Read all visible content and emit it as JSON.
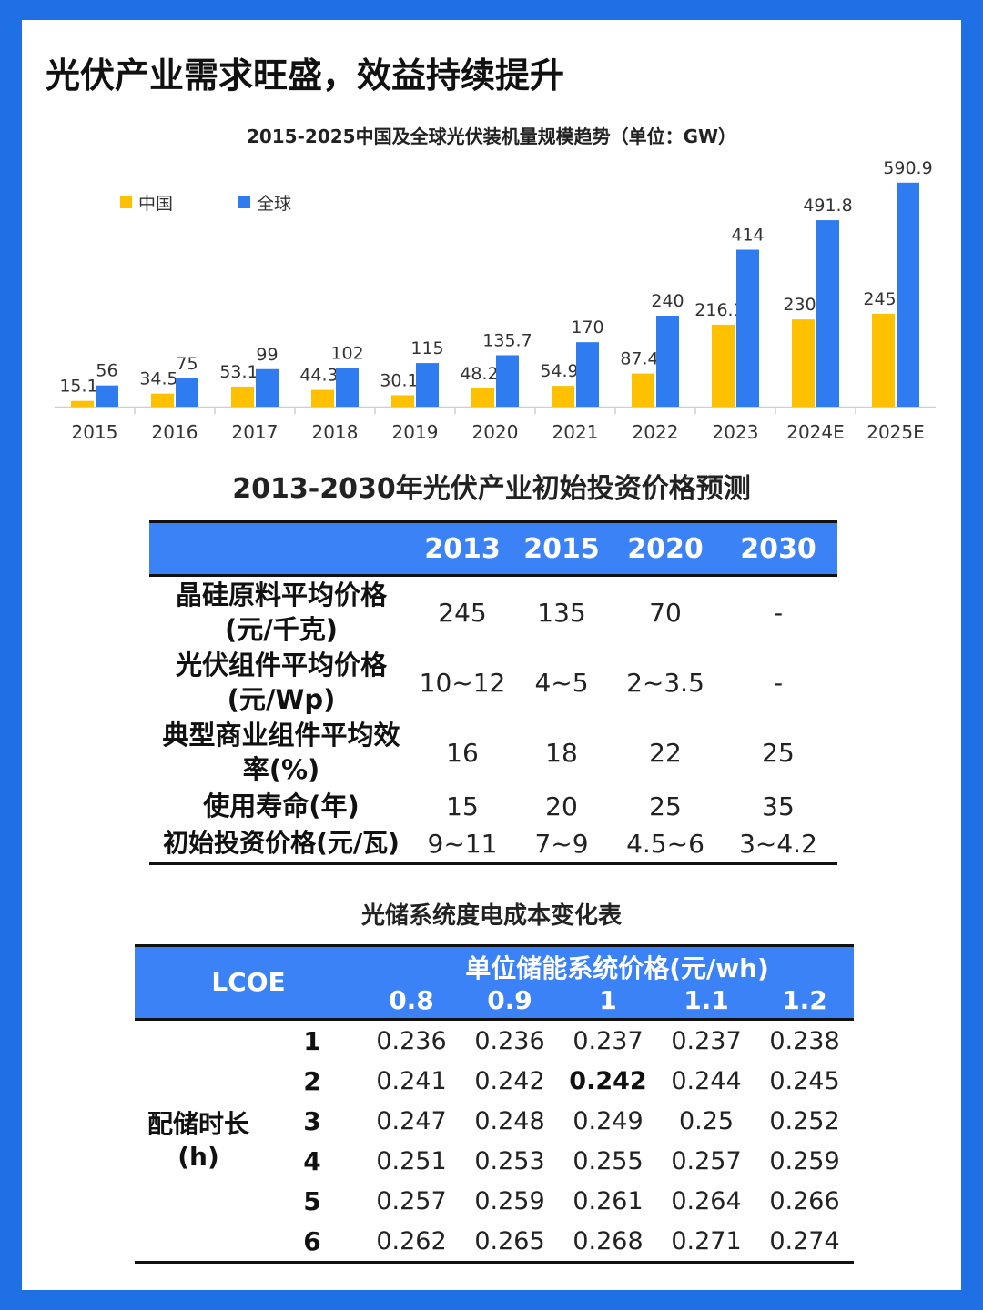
{
  "heading": "光伏产业需求旺盛，效益持续提升",
  "chart_data": {
    "type": "bar",
    "title": "2015-2025中国及全球光伏装机量规模趋势（单位：GW）",
    "categories": [
      "2015",
      "2016",
      "2017",
      "2018",
      "2019",
      "2020",
      "2021",
      "2022",
      "2023",
      "2024E",
      "2025E"
    ],
    "series": [
      {
        "name": "中国",
        "color": "#ffc000",
        "values": [
          15.1,
          34.5,
          53.1,
          44.3,
          30.1,
          48.2,
          54.9,
          87.4,
          216.3,
          230,
          245
        ]
      },
      {
        "name": "全球",
        "color": "#2f7cf0",
        "values": [
          56,
          75,
          99,
          102,
          115,
          135.7,
          170,
          240,
          414,
          491.8,
          590.9
        ]
      }
    ],
    "legend": "top-left",
    "grid": false,
    "ylim": [
      0,
      600
    ]
  },
  "table1": {
    "title": "2013-2030年光伏产业初始投资价格预测",
    "headers": [
      "",
      "2013",
      "2015",
      "2020",
      "2030"
    ],
    "rows": [
      {
        "label1": "晶硅原料平均价格",
        "label2": "(元/千克)",
        "values": [
          "245",
          "135",
          "70",
          "-"
        ]
      },
      {
        "label1": "光伏组件平均价格",
        "label2": "(元/Wp)",
        "values": [
          "10~12",
          "4~5",
          "2~3.5",
          "-"
        ]
      },
      {
        "label1": "典型商业组件平均效",
        "label2": "率(%)",
        "values": [
          "16",
          "18",
          "22",
          "25"
        ]
      },
      {
        "label1": "使用寿命(年)",
        "label2": "",
        "values": [
          "15",
          "20",
          "25",
          "35"
        ]
      },
      {
        "label1": "初始投资价格(元/瓦)",
        "label2": "",
        "values": [
          "9~11",
          "7~9",
          "4.5~6",
          "3~4.2"
        ]
      }
    ]
  },
  "table2": {
    "title": "光储系统度电成本变化表",
    "corner": "LCOE",
    "group_header": "单位储能系统价格(元/wh)",
    "columns": [
      "0.8",
      "0.9",
      "1",
      "1.1",
      "1.2"
    ],
    "side_label1": "配储时长",
    "side_label2": "(h)",
    "rows": [
      {
        "h": "1",
        "values": [
          "0.236",
          "0.236",
          "0.237",
          "0.237",
          "0.238"
        ]
      },
      {
        "h": "2",
        "values": [
          "0.241",
          "0.242",
          "0.242",
          "0.244",
          "0.245"
        ]
      },
      {
        "h": "3",
        "values": [
          "0.247",
          "0.248",
          "0.249",
          "0.25",
          "0.252"
        ]
      },
      {
        "h": "4",
        "values": [
          "0.251",
          "0.253",
          "0.255",
          "0.257",
          "0.259"
        ]
      },
      {
        "h": "5",
        "values": [
          "0.257",
          "0.259",
          "0.261",
          "0.264",
          "0.266"
        ]
      },
      {
        "h": "6",
        "values": [
          "0.262",
          "0.265",
          "0.268",
          "0.271",
          "0.274"
        ]
      }
    ],
    "highlight_cell": {
      "row": 1,
      "col": 2
    }
  }
}
